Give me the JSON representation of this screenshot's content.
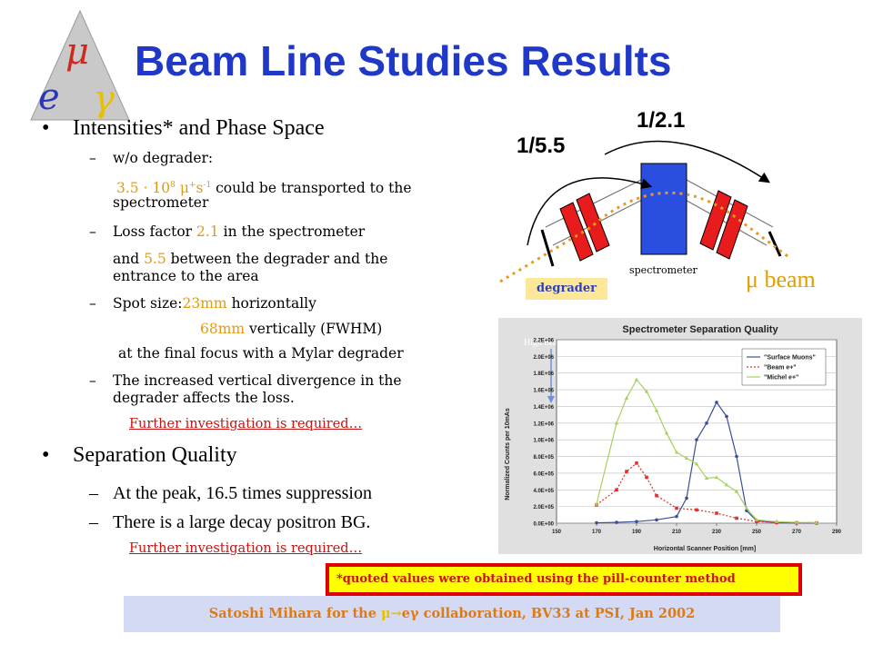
{
  "slide": {
    "title": "Beam Line Studies Results",
    "logo_letters": [
      "μ",
      "e",
      "γ"
    ]
  },
  "bullets": {
    "b1": {
      "title": "Intensities* and Phase Space",
      "items": {
        "wo_degrader": "w/o degrader:",
        "rate_value": "3.5 · 10",
        "rate_exp": "8",
        "rate_unit": " μ",
        "rate_plus": "+",
        "rate_s": "s",
        "rate_s_exp": "-1",
        "rate_rest_1": " could be transported to the",
        "rate_rest_2": "spectrometer",
        "loss_pre": "Loss factor ",
        "loss_val": "2.1",
        "loss_post": " in the spectrometer",
        "and_pre": "and ",
        "and_val": "5.5",
        "and_post": " between the degrader and the",
        "and_post_2": "entrance to the area",
        "spot_pre": "Spot size:",
        "spot_h": "23mm",
        "spot_h_post": " horizontally",
        "spot_v": "68mm",
        "spot_v_post": " vertically  (FWHM)",
        "final_focus": "at the final focus with a Mylar degrader",
        "diverg_1": "The increased vertical divergence in the",
        "diverg_2": "degrader affects the loss.",
        "further_1": "Further investigation is required…"
      }
    },
    "b2": {
      "title": "Separation Quality",
      "items": {
        "peak": "At the peak, 16.5 times suppression",
        "decay": "There is a large decay positron BG.",
        "further_2": "Further investigation is required…"
      }
    }
  },
  "diagram": {
    "ratio_left": "1/5.5",
    "ratio_right": "1/2.1",
    "degrader": "degrader",
    "spectrometer": "spectrometer",
    "beam": "μ beam"
  },
  "chart_data": {
    "type": "line",
    "title": "Spectrometer Separation Quality",
    "overlay_text": "High beam moments",
    "xlabel": "Horizontal Scanner Position    [mm]",
    "ylabel": "Normalized Counts per 10mAs",
    "xlim": [
      150,
      290
    ],
    "ylim": [
      0,
      2200000
    ],
    "xticks": [
      150,
      170,
      190,
      210,
      230,
      250,
      270,
      290
    ],
    "xtick_labels": [
      "150",
      "170",
      "190",
      "210",
      "230",
      "250",
      "270",
      "290"
    ],
    "yticks": [
      0,
      200000,
      400000,
      600000,
      800000,
      1000000,
      1200000,
      1400000,
      1600000,
      1800000,
      2000000,
      2200000
    ],
    "ytick_labels": [
      "0.0E+00",
      "2.0E+05",
      "4.0E+05",
      "6.0E+05",
      "8.0E+05",
      "1.0E+06",
      "1.2E+06",
      "1.4E+06",
      "1.6E+06",
      "1.8E+06",
      "2.0E+06",
      "2.2E+06"
    ],
    "legend_position": "top-right",
    "series": [
      {
        "name": "\"Surface Muons\"",
        "color": "#3a4f9a",
        "x": [
          170,
          180,
          190,
          200,
          210,
          215,
          220,
          225,
          230,
          235,
          240,
          245,
          250,
          260,
          270,
          280
        ],
        "y": [
          5000,
          10000,
          20000,
          40000,
          80000,
          300000,
          1000000,
          1200000,
          1450000,
          1280000,
          800000,
          150000,
          30000,
          5000,
          2000,
          1000
        ]
      },
      {
        "name": "\"Beam e+\"",
        "color": "#e03030",
        "x": [
          170,
          180,
          185,
          190,
          195,
          200,
          210,
          220,
          230,
          240,
          250,
          260,
          270,
          280
        ],
        "y": [
          220000,
          400000,
          620000,
          720000,
          550000,
          330000,
          180000,
          160000,
          120000,
          60000,
          20000,
          8000,
          5000,
          3000
        ]
      },
      {
        "name": "\"Michel e+\"",
        "color": "#a8d060",
        "x": [
          170,
          180,
          185,
          190,
          195,
          200,
          205,
          210,
          215,
          220,
          225,
          230,
          235,
          240,
          245,
          250,
          260,
          270,
          280
        ],
        "y": [
          230000,
          1200000,
          1500000,
          1720000,
          1580000,
          1350000,
          1080000,
          850000,
          780000,
          710000,
          540000,
          550000,
          460000,
          380000,
          180000,
          40000,
          20000,
          10000,
          8000
        ]
      }
    ]
  },
  "note": "*quoted values were obtained using the pill-counter method",
  "footer": {
    "pre": "Satoshi Mihara for the ",
    "mu": "μ",
    "arrow": "→",
    "egamma": "eγ",
    "post": " collaboration, BV33 at PSI, Jan 2002"
  }
}
